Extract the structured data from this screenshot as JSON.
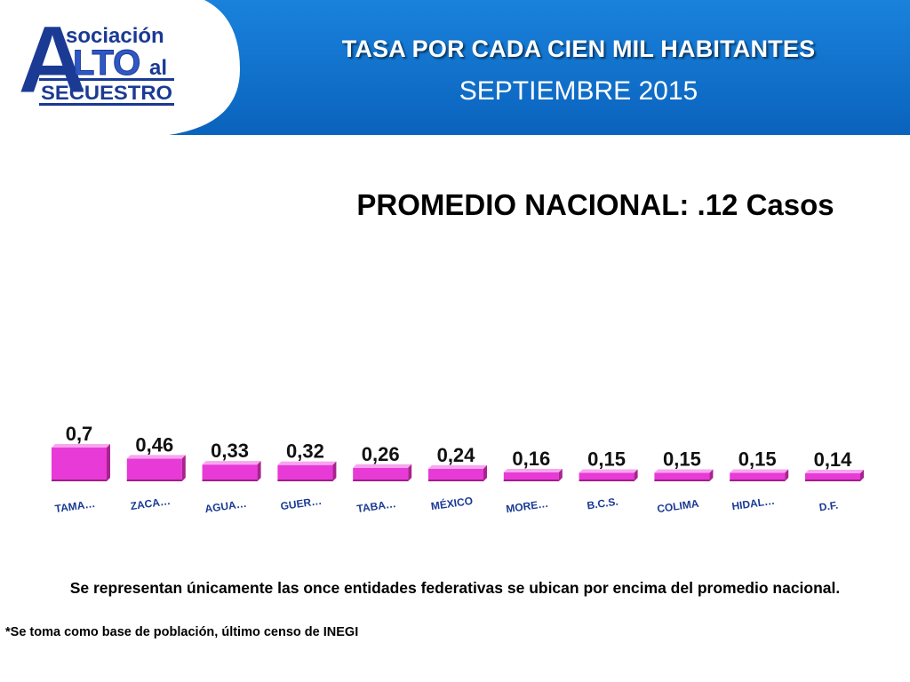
{
  "header": {
    "title": "TASA POR CADA CIEN MIL HABITANTES",
    "subtitle": "SEPTIEMBRE 2015",
    "band_color": "#0a6fc8",
    "logo": {
      "line1": "sociación",
      "big_letter": "A",
      "word": "LTO",
      "suffix": "al",
      "line3": "SECUESTRO",
      "colors": {
        "blue": "#1a3a94",
        "accent": "#2f58c6"
      }
    }
  },
  "average_label": "PROMEDIO NACIONAL: .12 Casos",
  "chart_data": {
    "type": "bar",
    "categories": [
      "TAMA…",
      "ZACA…",
      "AGUA…",
      "GUER…",
      "TABA…",
      "MÉXICO",
      "MORE…",
      "B.C.S.",
      "COLIMA",
      "HIDAL…",
      "D.F."
    ],
    "values": [
      0.7,
      0.46,
      0.33,
      0.32,
      0.26,
      0.24,
      0.16,
      0.15,
      0.15,
      0.15,
      0.14
    ],
    "value_labels": [
      "0,7",
      "0,46",
      "0,33",
      "0,32",
      "0,26",
      "0,24",
      "0,16",
      "0,15",
      "0,15",
      "0,15",
      "0,14"
    ],
    "bar_color": "#e83ad6",
    "title": "",
    "xlabel": "",
    "ylabel": "",
    "grid": false,
    "style": "3d"
  },
  "notes": {
    "main": "Se representan únicamente las once entidades federativas se ubican por encima del promedio nacional.",
    "source": "*Se toma como base de población, último censo de INEGI"
  }
}
